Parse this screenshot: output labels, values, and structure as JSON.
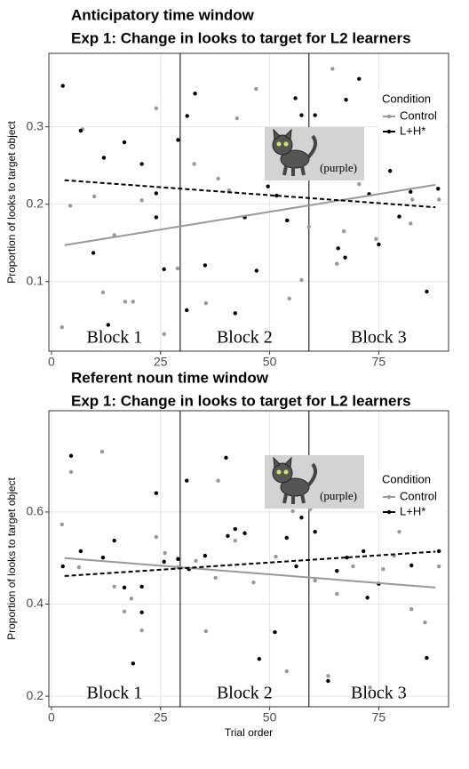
{
  "chart_data": [
    {
      "type": "scatter",
      "title": "Anticipatory time window",
      "subtitle": "Exp 1: Change in looks to target for L2 learners",
      "ylabel": "Proportion of looks to target object",
      "xlim": [
        -0.6,
        91
      ],
      "ylim": [
        0.01,
        0.395
      ],
      "xticks": [
        0,
        25,
        50,
        75
      ],
      "yticks": [
        0.1,
        0.2,
        0.3
      ],
      "grid": true,
      "vlines": [
        29.5,
        59
      ],
      "block_labels": [
        "Block 1",
        "Block 2",
        "Block 3"
      ],
      "image_caption": "(purple)",
      "legend_title": "Condition",
      "legend": "right",
      "series": [
        {
          "name": "Control",
          "color": "#999999",
          "line_style": "solid",
          "x": [
            2.4,
            4.3,
            7.1,
            9.8,
            11.8,
            14.4,
            16.9,
            18.7,
            20.7,
            24,
            25.8,
            28.9,
            32.7,
            35.4,
            38.2,
            40.7,
            42.5,
            46.9,
            54.5,
            57.3,
            59,
            65.4,
            67,
            64.4,
            70.5,
            74.4,
            82.7,
            82.3,
            88.8
          ],
          "y": [
            0.041,
            0.198,
            0.297,
            0.21,
            0.086,
            0.16,
            0.074,
            0.074,
            0.205,
            0.324,
            0.032,
            0.117,
            0.252,
            0.072,
            0.233,
            0.218,
            0.311,
            0.349,
            0.078,
            0.102,
            0.171,
            0.123,
            0.165,
            0.375,
            0.226,
            0.155,
            0.206,
            0.175,
            0.206
          ],
          "trend_x": [
            3,
            88
          ],
          "trend_y": [
            0.147,
            0.225
          ]
        },
        {
          "name": "L+H*",
          "color": "#000000",
          "line_style": "dashed",
          "x": [
            2.6,
            6.7,
            12,
            16.7,
            20.7,
            9.6,
            24,
            24,
            29,
            31.1,
            32.9,
            25.8,
            13,
            31,
            35.2,
            42.1,
            47,
            44.3,
            49.6,
            51.6,
            55.9,
            54,
            57.3,
            60.4,
            67.5,
            70.5,
            65.7,
            67.3,
            72.8,
            77.6,
            79.7,
            75,
            82.3,
            86,
            88.6
          ],
          "y": [
            0.353,
            0.295,
            0.26,
            0.28,
            0.252,
            0.137,
            0.214,
            0.183,
            0.283,
            0.314,
            0.343,
            0.116,
            0.044,
            0.063,
            0.121,
            0.059,
            0.114,
            0.183,
            0.223,
            0.211,
            0.337,
            0.179,
            0.315,
            0.315,
            0.335,
            0.362,
            0.143,
            0.131,
            0.213,
            0.243,
            0.184,
            0.148,
            0.216,
            0.087,
            0.22
          ],
          "trend_x": [
            3,
            88
          ],
          "trend_y": [
            0.231,
            0.196
          ]
        }
      ]
    },
    {
      "type": "scatter",
      "title": "Referent noun time window",
      "subtitle": "Exp 1: Change in looks to target for L2 learners",
      "xlabel": "Trial order",
      "ylabel": "Proportion of looks to target object",
      "xlim": [
        -0.6,
        91
      ],
      "ylim": [
        0.177,
        0.82
      ],
      "xticks": [
        0,
        25,
        50,
        75
      ],
      "yticks": [
        0.2,
        0.4,
        0.6
      ],
      "grid": true,
      "vlines": [
        29.5,
        59
      ],
      "block_labels": [
        "Block 1",
        "Block 2",
        "Block 3"
      ],
      "image_caption": "(purple)",
      "legend_title": "Condition",
      "legend": "right",
      "series": [
        {
          "name": "Control",
          "color": "#999999",
          "line_style": "solid",
          "x": [
            2.4,
            4.5,
            6.3,
            11.6,
            14.4,
            16.7,
            18.3,
            20.7,
            24,
            26,
            28.9,
            33.1,
            35.4,
            37.6,
            38.2,
            42.1,
            46.3,
            51.4,
            53.9,
            55.3,
            59.3,
            60.4,
            63.4,
            65.4,
            69.1,
            76,
            78.5,
            79.7,
            82.5,
            85.6,
            88.8,
            73
          ],
          "y": [
            0.573,
            0.687,
            0.48,
            0.731,
            0.438,
            0.384,
            0.412,
            0.343,
            0.546,
            0.511,
            0.48,
            0.494,
            0.341,
            0.457,
            0.668,
            0.538,
            0.447,
            0.503,
            0.254,
            0.602,
            0.606,
            0.451,
            0.244,
            0.422,
            0.482,
            0.476,
            0.505,
            0.557,
            0.389,
            0.36,
            0.482,
            0.219
          ],
          "trend_x": [
            3,
            88
          ],
          "trend_y": [
            0.5,
            0.436
          ]
        },
        {
          "name": "L+H*",
          "color": "#000000",
          "line_style": "dashed",
          "x": [
            4.5,
            2.6,
            6.7,
            11.8,
            14.4,
            16.7,
            18.7,
            20.7,
            20.7,
            24,
            25.8,
            29,
            31,
            31.5,
            35.2,
            40.4,
            42.1,
            40,
            44.3,
            47.6,
            51.2,
            53.9,
            56.1,
            57.3,
            60.4,
            63.4,
            65.4,
            67.7,
            71.5,
            72.4,
            75,
            82.5,
            86,
            88.8
          ],
          "y": [
            0.722,
            0.482,
            0.515,
            0.501,
            0.538,
            0.436,
            0.271,
            0.438,
            0.382,
            0.641,
            0.492,
            0.498,
            0.668,
            0.476,
            0.505,
            0.548,
            0.563,
            0.718,
            0.554,
            0.281,
            0.339,
            0.544,
            0.482,
            0.588,
            0.557,
            0.233,
            0.472,
            0.501,
            0.515,
            0.414,
            0.444,
            0.484,
            0.283,
            0.515
          ],
          "trend_x": [
            3,
            88
          ],
          "trend_y": [
            0.461,
            0.514
          ]
        }
      ]
    }
  ]
}
